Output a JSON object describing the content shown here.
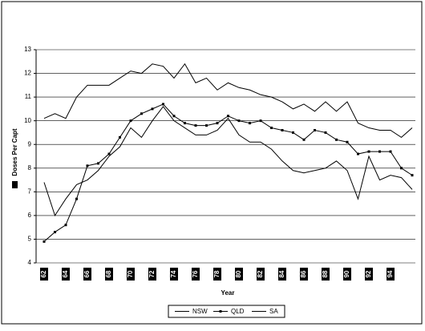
{
  "chart_data": {
    "type": "line",
    "ylabel": "Doses Per Capt",
    "xlabel": "Year",
    "categories": [
      "62",
      null,
      "64",
      null,
      "66",
      null,
      "68",
      null,
      "70",
      null,
      "72",
      null,
      "74",
      null,
      "76",
      null,
      "78",
      null,
      "80",
      null,
      "82",
      null,
      "84",
      null,
      "86",
      null,
      "88",
      null,
      "90",
      null,
      "92",
      null,
      "94",
      null,
      null
    ],
    "series": [
      {
        "name": "NSW",
        "color": "#000000",
        "marker": false,
        "values": [
          10.1,
          10.3,
          10.1,
          11.0,
          11.5,
          11.5,
          11.5,
          11.8,
          12.1,
          12.0,
          12.4,
          12.3,
          11.8,
          12.4,
          11.6,
          11.8,
          11.3,
          11.6,
          11.4,
          11.3,
          11.1,
          11.0,
          10.8,
          10.5,
          10.7,
          10.4,
          10.8,
          10.4,
          10.8,
          9.9,
          9.7,
          9.6,
          9.6,
          9.3,
          9.7
        ]
      },
      {
        "name": "QLD",
        "color": "#000000",
        "marker": true,
        "values": [
          4.9,
          5.3,
          5.6,
          6.7,
          8.1,
          8.2,
          8.6,
          9.3,
          10.0,
          10.3,
          10.5,
          10.7,
          10.2,
          9.9,
          9.8,
          9.8,
          9.9,
          10.2,
          10.0,
          9.9,
          10.0,
          9.7,
          9.6,
          9.5,
          9.2,
          9.6,
          9.5,
          9.2,
          9.1,
          8.6,
          8.7,
          8.7,
          8.7,
          8.0,
          7.7
        ]
      },
      {
        "name": "SA",
        "color": "#000000",
        "marker": false,
        "values": [
          7.4,
          6.0,
          6.7,
          7.3,
          7.5,
          7.9,
          8.5,
          8.9,
          9.7,
          9.3,
          10.0,
          10.6,
          10.0,
          9.7,
          9.4,
          9.4,
          9.6,
          10.1,
          9.4,
          9.1,
          9.1,
          8.8,
          8.3,
          7.9,
          7.8,
          7.9,
          8.0,
          8.3,
          7.9,
          6.7,
          8.5,
          7.5,
          7.7,
          7.6,
          7.1
        ]
      }
    ],
    "ylim": [
      4,
      13
    ],
    "yticks": [
      4,
      5,
      6,
      7,
      8,
      9,
      10,
      11,
      12,
      13
    ],
    "grid": true,
    "legend": "bottom"
  }
}
